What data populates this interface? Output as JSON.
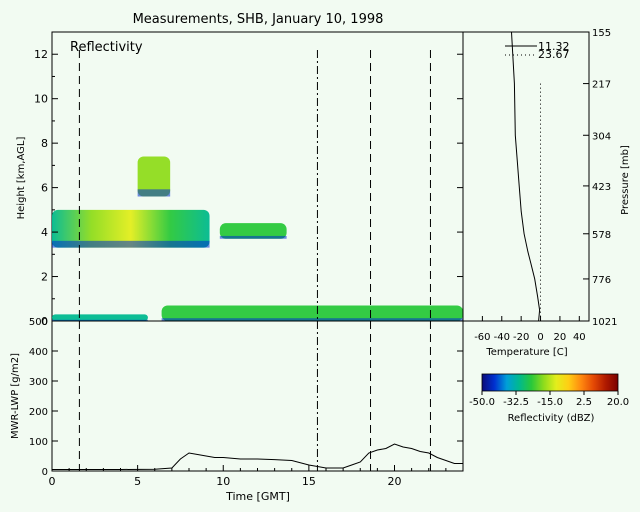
{
  "title": "Measurements, SHB, January 10, 1998",
  "colors": {
    "background": "#f2fbf2",
    "ink": "#000000"
  },
  "chart_data": [
    {
      "type": "heatmap",
      "panel_label": "Reflectivity",
      "ylabel": "Height [km,AGL]",
      "xlim": [
        0,
        24
      ],
      "ylim": [
        0,
        13
      ],
      "yticks": [
        0,
        2,
        4,
        6,
        8,
        10,
        12
      ],
      "vlines_dashed": [
        1.6,
        18.6,
        22.1
      ],
      "vlines_dashdot": [
        15.5
      ],
      "echoes": [
        {
          "x": [
            5.0,
            6.9
          ],
          "y": [
            5.6,
            7.4
          ],
          "dbz": -20
        },
        {
          "x": [
            0.0,
            9.2
          ],
          "y": [
            3.3,
            5.0
          ],
          "dbz": -15
        },
        {
          "x": [
            9.8,
            13.7
          ],
          "y": [
            3.7,
            4.4
          ],
          "dbz": -25
        },
        {
          "x": [
            6.4,
            24.0
          ],
          "y": [
            0.0,
            0.7
          ],
          "dbz": -25
        },
        {
          "x": [
            0.0,
            5.6
          ],
          "y": [
            0.0,
            0.3
          ],
          "dbz": -30
        }
      ]
    },
    {
      "type": "line",
      "panel_label": "",
      "series": [
        {
          "name": "11.32",
          "style": "solid",
          "temperature": [
            -30,
            -27,
            -26,
            -24,
            -22,
            -20,
            -17,
            -13,
            -10,
            -6,
            -3,
            -1,
            -2
          ],
          "pressure": [
            155,
            217,
            304,
            360,
            423,
            500,
            578,
            650,
            700,
            776,
            870,
            950,
            1021
          ]
        },
        {
          "name": "23.67",
          "style": "dotted",
          "temperature": [
            0,
            0
          ],
          "pressure": [
            217,
            1021
          ]
        }
      ],
      "xlabel": "Temperature [C]",
      "ylabel": "Pressure [mb]",
      "xticks": [
        "-60",
        "-40",
        "-20",
        "0",
        "20",
        "40"
      ],
      "yticks": [
        "155",
        "217",
        "304",
        "423",
        "578",
        "776",
        "1021"
      ]
    },
    {
      "type": "line",
      "ylabel": "MWR-LWP [g/m2]",
      "xlabel": "Time [GMT]",
      "xlim": [
        0,
        24
      ],
      "ylim": [
        0,
        500
      ],
      "xticks": [
        0,
        5,
        10,
        15,
        20
      ],
      "yticks": [
        0,
        100,
        200,
        300,
        400,
        500
      ],
      "vlines_dashed": [
        1.6,
        18.6,
        22.1
      ],
      "vlines_dashdot": [
        15.5
      ],
      "series": [
        {
          "x": [
            0,
            4,
            6,
            7,
            7.5,
            8,
            8.5,
            9,
            9.5,
            10,
            11,
            12,
            13,
            14,
            15,
            16,
            17,
            17.5,
            18,
            18.5,
            19,
            19.5,
            20,
            20.5,
            21,
            21.5,
            22,
            22.5,
            23,
            23.5,
            24
          ],
          "y": [
            5,
            5,
            6,
            10,
            40,
            60,
            55,
            50,
            45,
            45,
            40,
            40,
            38,
            35,
            20,
            10,
            10,
            20,
            30,
            60,
            70,
            75,
            90,
            80,
            75,
            65,
            60,
            45,
            35,
            25,
            25
          ]
        }
      ]
    },
    {
      "type": "colorbar",
      "label": "Reflectivity (dBZ)",
      "range": [
        -50,
        20
      ],
      "ticks": [
        "-50.0",
        "-32.5",
        "-15.0",
        "2.5",
        "20.0"
      ],
      "colors": [
        "#0b0b7a",
        "#0030d0",
        "#009fd8",
        "#00b98f",
        "#29c83a",
        "#8fdc1c",
        "#e3ee1c",
        "#ffce14",
        "#ff8a0f",
        "#e54a05",
        "#b01a00",
        "#7a0000"
      ]
    }
  ]
}
